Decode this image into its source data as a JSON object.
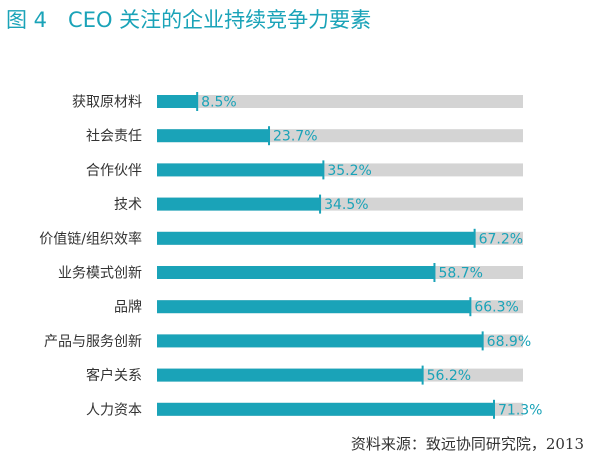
{
  "title": "图 4　CEO 关注的企业持续竞争力要素",
  "source": "资料来源：致远协同研究院，2013",
  "colors": {
    "bar": "#1aa3b8",
    "track": "#d4d4d4",
    "title": "#1aa3b8",
    "label": "#333333",
    "value": "#1aa3b8"
  },
  "chart_data": {
    "type": "bar",
    "orientation": "horizontal",
    "categories": [
      "获取原材料",
      "社会责任",
      "合作伙伴",
      "技术",
      "价值链/组织效率",
      "业务模式创新",
      "品牌",
      "产品与服务创新",
      "客户关系",
      "人力资本"
    ],
    "values": [
      8.5,
      23.7,
      35.2,
      34.5,
      67.2,
      58.7,
      66.3,
      68.9,
      56.2,
      71.3
    ],
    "value_labels": [
      "8.5%",
      "23.7%",
      "35.2%",
      "34.5%",
      "67.2%",
      "58.7%",
      "66.3%",
      "68.9%",
      "56.2%",
      "71.3%"
    ],
    "xlim": [
      0,
      100
    ],
    "grid": false,
    "legend": "none"
  }
}
